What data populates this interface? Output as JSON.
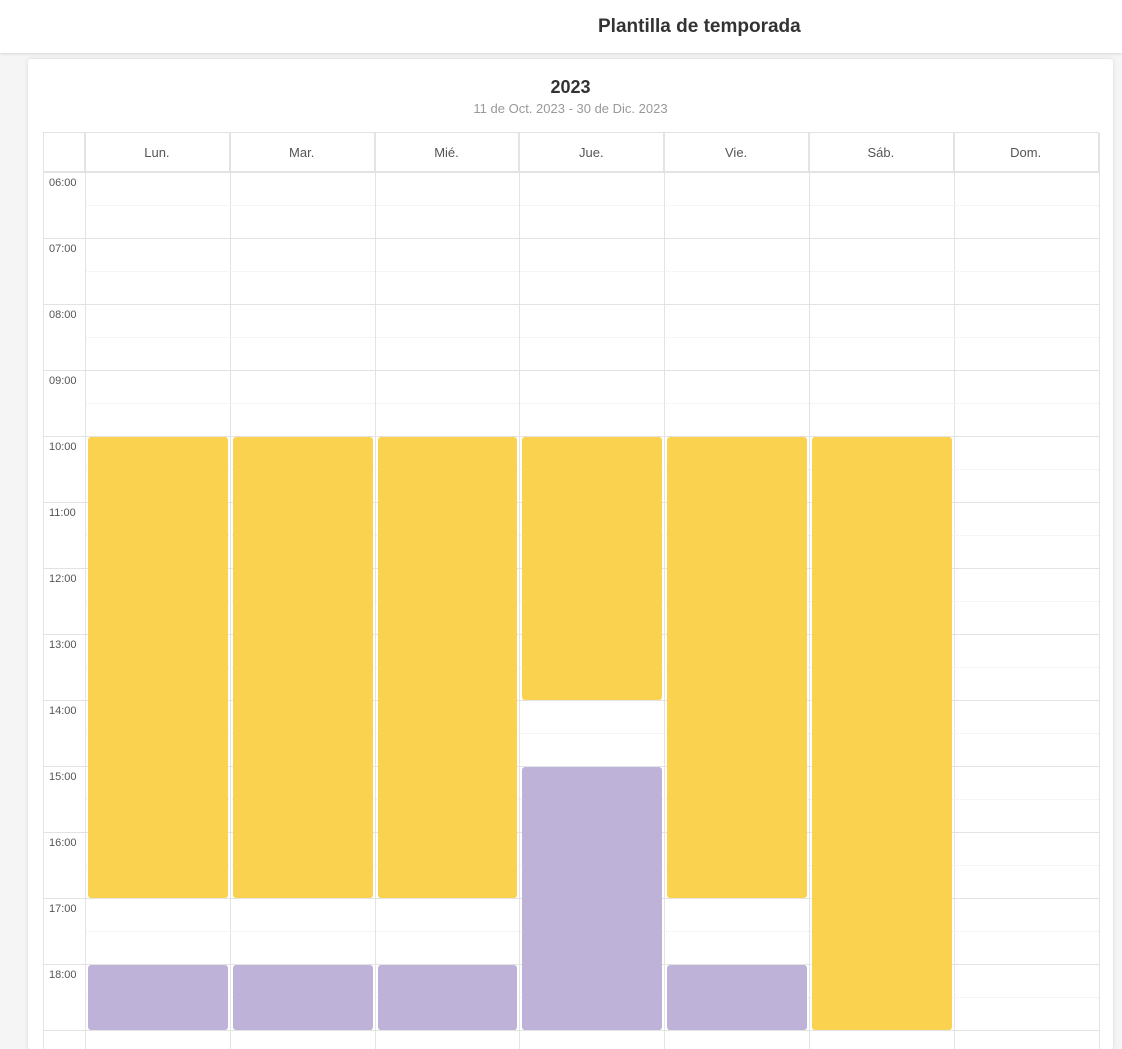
{
  "header": {
    "title": "Plantilla de temporada"
  },
  "season": {
    "year": "2023",
    "range": "11 de Oct. 2023 - 30 de Dic. 2023"
  },
  "days": [
    "Lun.",
    "Mar.",
    "Mié.",
    "Jue.",
    "Vie.",
    "Sáb.",
    "Dom."
  ],
  "hours": [
    "06:00",
    "07:00",
    "08:00",
    "09:00",
    "10:00",
    "11:00",
    "12:00",
    "13:00",
    "14:00",
    "15:00",
    "16:00",
    "17:00",
    "18:00"
  ],
  "colors": {
    "yellow": "#fbd24f",
    "purple": "#beb2d8"
  },
  "events": [
    {
      "day": 0,
      "start": "10:00",
      "end": "17:00",
      "color": "#fbd24f"
    },
    {
      "day": 0,
      "start": "18:00",
      "end": "19:00",
      "color": "#beb2d8"
    },
    {
      "day": 1,
      "start": "10:00",
      "end": "17:00",
      "color": "#fbd24f"
    },
    {
      "day": 1,
      "start": "18:00",
      "end": "19:00",
      "color": "#beb2d8"
    },
    {
      "day": 2,
      "start": "10:00",
      "end": "17:00",
      "color": "#fbd24f"
    },
    {
      "day": 2,
      "start": "18:00",
      "end": "19:00",
      "color": "#beb2d8"
    },
    {
      "day": 3,
      "start": "10:00",
      "end": "14:00",
      "color": "#fbd24f"
    },
    {
      "day": 3,
      "start": "15:00",
      "end": "19:00",
      "color": "#beb2d8"
    },
    {
      "day": 4,
      "start": "10:00",
      "end": "17:00",
      "color": "#fbd24f"
    },
    {
      "day": 4,
      "start": "18:00",
      "end": "19:00",
      "color": "#beb2d8"
    },
    {
      "day": 5,
      "start": "10:00",
      "end": "19:00",
      "color": "#fbd24f"
    }
  ]
}
